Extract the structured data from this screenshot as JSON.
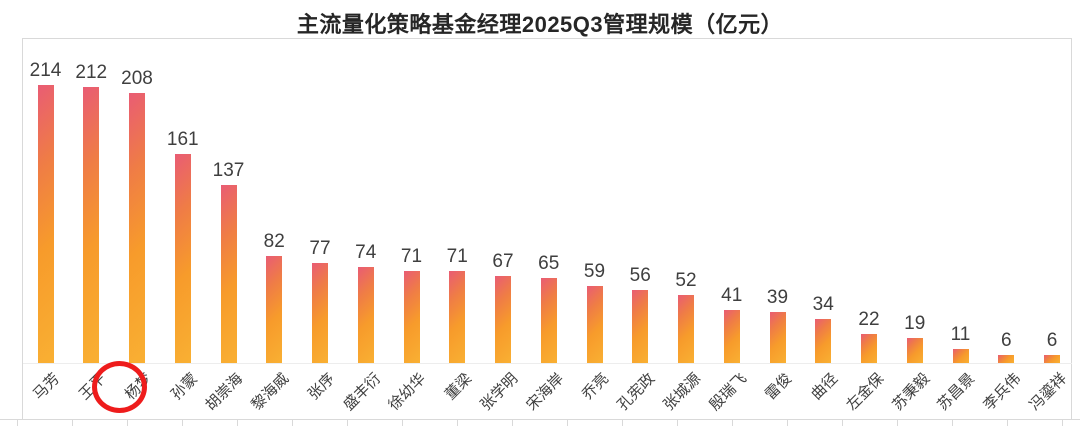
{
  "title": "主流量化策略基金经理2025Q3管理规模（亿元）",
  "chart_data": {
    "type": "bar",
    "title": "主流量化策略基金经理2025Q3管理规模（亿元）",
    "categories": [
      "马芳",
      "王平",
      "杨梦",
      "孙蒙",
      "胡崇海",
      "黎海威",
      "张序",
      "盛丰衍",
      "徐幼华",
      "董梁",
      "张学明",
      "宋海岸",
      "乔亮",
      "孔宪政",
      "张城源",
      "殷瑞飞",
      "雷俊",
      "曲径",
      "左金保",
      "苏秉毅",
      "苏昌景",
      "李兵伟",
      "冯鎏祥"
    ],
    "values": [
      214,
      212,
      208,
      161,
      137,
      82,
      77,
      74,
      71,
      71,
      67,
      65,
      59,
      56,
      52,
      41,
      39,
      34,
      22,
      19,
      11,
      6,
      6
    ],
    "xlabel": "",
    "ylabel": "",
    "ylim": [
      0,
      230
    ],
    "grid": false,
    "legend": false,
    "value_labels_shown": true,
    "category_label_rotation_deg": 45,
    "bar_gradient": [
      "#e95c74",
      "#ef7c46",
      "#f79b2b",
      "#f9b033"
    ],
    "value_label_color": "#3f3f3f",
    "category_label_color": "#404040",
    "frame_border_color": "#d9d9d9"
  },
  "annotation": {
    "circled_category": "杨梦",
    "circle_color": "#ee1c1c"
  }
}
